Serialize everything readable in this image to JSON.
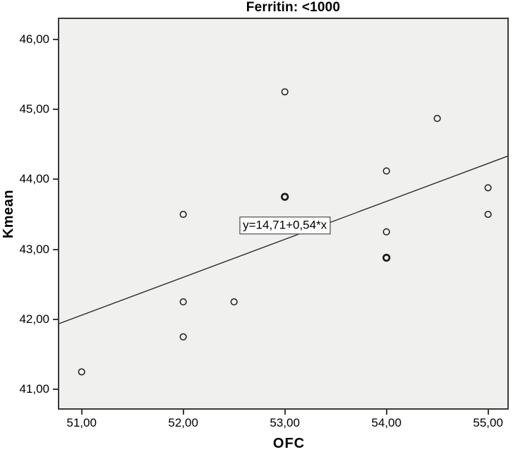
{
  "chart_data": {
    "type": "scatter",
    "title": "Ferritin: <1000",
    "xlabel": "OFC",
    "ylabel": "Kmean",
    "xlim": [
      50.78,
      55.19
    ],
    "ylim": [
      40.73,
      46.29
    ],
    "grid": false,
    "x_ticks": [
      {
        "value": 51,
        "label": "51,00"
      },
      {
        "value": 52,
        "label": "52,00"
      },
      {
        "value": 53,
        "label": "53,00"
      },
      {
        "value": 54,
        "label": "54,00"
      },
      {
        "value": 55,
        "label": "55,00"
      }
    ],
    "y_ticks": [
      {
        "value": 46,
        "label": "46,00"
      },
      {
        "value": 45,
        "label": "45,00"
      },
      {
        "value": 44,
        "label": "44,00"
      },
      {
        "value": 43,
        "label": "43,00"
      },
      {
        "value": 42,
        "label": "42,00"
      },
      {
        "value": 41,
        "label": "41,00"
      }
    ],
    "points": [
      {
        "x": 51.0,
        "y": 41.25,
        "overlap": false
      },
      {
        "x": 52.0,
        "y": 41.75,
        "overlap": false
      },
      {
        "x": 52.0,
        "y": 42.25,
        "overlap": false
      },
      {
        "x": 52.0,
        "y": 43.5,
        "overlap": false
      },
      {
        "x": 52.5,
        "y": 42.25,
        "overlap": false
      },
      {
        "x": 53.0,
        "y": 43.75,
        "overlap": true
      },
      {
        "x": 53.0,
        "y": 45.25,
        "overlap": false
      },
      {
        "x": 54.0,
        "y": 42.88,
        "overlap": true
      },
      {
        "x": 54.0,
        "y": 43.25,
        "overlap": false
      },
      {
        "x": 54.0,
        "y": 44.12,
        "overlap": false
      },
      {
        "x": 54.5,
        "y": 44.87,
        "overlap": false
      },
      {
        "x": 55.0,
        "y": 43.5,
        "overlap": false
      },
      {
        "x": 55.0,
        "y": 43.88,
        "overlap": false
      }
    ],
    "fit_line": {
      "label": "y=14,71+0,54*x",
      "x1": 50.78,
      "y1": 41.94,
      "x2": 55.19,
      "y2": 44.33,
      "label_x": 53.0,
      "label_y": 43.34
    },
    "colors": {
      "figure_bg": "#ffffff",
      "plot_bg": "#f0f0ee",
      "frame": "#3a3a3a",
      "marker": "#1c1c1c",
      "line": "#2b2b2b",
      "text": "#000000"
    }
  }
}
